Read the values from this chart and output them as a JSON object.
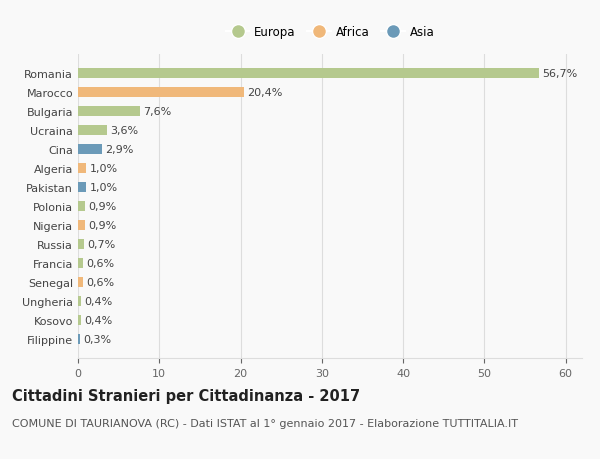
{
  "categories": [
    "Romania",
    "Marocco",
    "Bulgaria",
    "Ucraina",
    "Cina",
    "Algeria",
    "Pakistan",
    "Polonia",
    "Nigeria",
    "Russia",
    "Francia",
    "Senegal",
    "Ungheria",
    "Kosovo",
    "Filippine"
  ],
  "values": [
    56.7,
    20.4,
    7.6,
    3.6,
    2.9,
    1.0,
    1.0,
    0.9,
    0.9,
    0.7,
    0.6,
    0.6,
    0.4,
    0.4,
    0.3
  ],
  "labels": [
    "56,7%",
    "20,4%",
    "7,6%",
    "3,6%",
    "2,9%",
    "1,0%",
    "1,0%",
    "0,9%",
    "0,9%",
    "0,7%",
    "0,6%",
    "0,6%",
    "0,4%",
    "0,4%",
    "0,3%"
  ],
  "colors": [
    "#b5c98e",
    "#f0b87a",
    "#b5c98e",
    "#b5c98e",
    "#6b9ab8",
    "#f0b87a",
    "#6b9ab8",
    "#b5c98e",
    "#f0b87a",
    "#b5c98e",
    "#b5c98e",
    "#f0b87a",
    "#b5c98e",
    "#b5c98e",
    "#6b9ab8"
  ],
  "legend_labels": [
    "Europa",
    "Africa",
    "Asia"
  ],
  "legend_colors": [
    "#b5c98e",
    "#f0b87a",
    "#6b9ab8"
  ],
  "xlim": [
    0,
    62
  ],
  "xticks": [
    0,
    10,
    20,
    30,
    40,
    50,
    60
  ],
  "title": "Cittadini Stranieri per Cittadinanza - 2017",
  "subtitle": "COMUNE DI TAURIANOVA (RC) - Dati ISTAT al 1° gennaio 2017 - Elaborazione TUTTITALIA.IT",
  "background_color": "#f9f9f9",
  "grid_color": "#dddddd",
  "title_fontsize": 10.5,
  "subtitle_fontsize": 8,
  "label_fontsize": 8,
  "tick_fontsize": 8,
  "bar_height": 0.55
}
